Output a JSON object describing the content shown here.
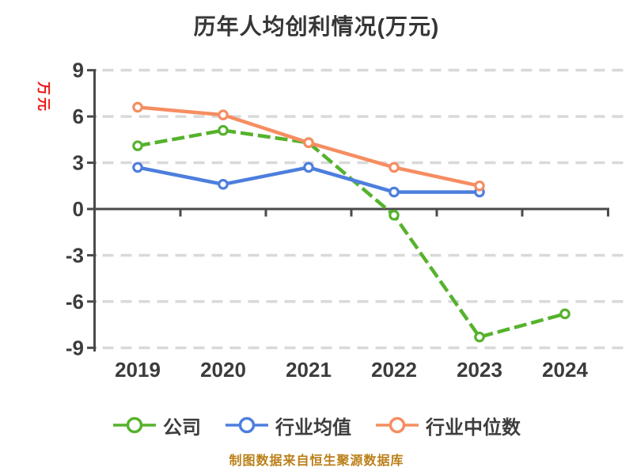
{
  "title": "历年人均创利情况(万元)",
  "footer": "制图数据来自恒生聚源数据库",
  "colors": {
    "title_text": "#363636",
    "ylabel_text": "#ee1111",
    "tick_label": "#3c3c3c",
    "axis_line": "#4a4a4a",
    "gridline": "#d9d9d9",
    "legend_text": "#3d3d3d",
    "footer_text": "#bb7f18",
    "background": "#ffffff",
    "marker_fill": "#ffffff"
  },
  "chart_data": {
    "type": "line",
    "title": "历年人均创利情况(万元)",
    "xlabel": "",
    "ylabel": "万元",
    "x": [
      "2019",
      "2020",
      "2021",
      "2022",
      "2023",
      "2024"
    ],
    "yticks": [
      9,
      6,
      3,
      0,
      -3,
      -6,
      -9
    ],
    "ylim": [
      -9,
      9
    ],
    "grid": "horizontal-dashed",
    "x_axis_position": "zero",
    "legend_position": "bottom",
    "series": [
      {
        "name": "公司",
        "slug": "company",
        "color": "#56b22d",
        "line_style": "dashed",
        "marker": "circle-white-fill",
        "values": [
          4.1,
          5.1,
          4.3,
          -0.4,
          -8.3,
          -6.8
        ]
      },
      {
        "name": "行业均值",
        "slug": "industry-average",
        "color": "#4d7ede",
        "line_style": "solid",
        "marker": "circle-white-fill",
        "values": [
          2.7,
          1.6,
          2.7,
          1.1,
          1.1,
          null
        ]
      },
      {
        "name": "行业中位数",
        "slug": "industry-median",
        "color": "#f68d61",
        "line_style": "solid",
        "marker": "circle-white-fill",
        "values": [
          6.6,
          6.1,
          4.3,
          2.7,
          1.5,
          null
        ]
      }
    ]
  }
}
